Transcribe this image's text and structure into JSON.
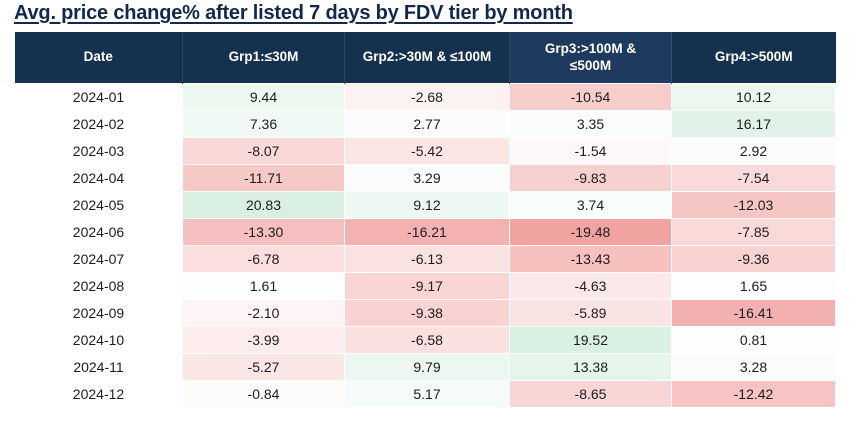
{
  "page": {
    "title": "Avg. price change% after listed 7 days by FDV tier by month"
  },
  "colors": {
    "title_text": "#12294b",
    "header_bg": "#16304f",
    "header_bg_grp3": "#1e3a5e",
    "header_text": "#ffffff",
    "body_text": "#1d1d1d",
    "positive_strong": "#d8efe1",
    "negative_strong": "#f0a3a1",
    "neutral": "#ffffff"
  },
  "chart_data": {
    "type": "heatmap",
    "title": "Avg. price change% after listed 7 days by FDV tier by month",
    "columns": [
      "Date",
      "Grp1:≤30M",
      "Grp2:>30M & ≤100M",
      "Grp3:>100M & ≤500M",
      "Grp4:>500M"
    ],
    "rows": [
      {
        "date": "2024-01",
        "values": [
          9.44,
          -2.68,
          -10.54,
          10.12
        ]
      },
      {
        "date": "2024-02",
        "values": [
          7.36,
          2.77,
          3.35,
          16.17
        ]
      },
      {
        "date": "2024-03",
        "values": [
          -8.07,
          -5.42,
          -1.54,
          2.92
        ]
      },
      {
        "date": "2024-04",
        "values": [
          -11.71,
          3.29,
          -9.83,
          -7.54
        ]
      },
      {
        "date": "2024-05",
        "values": [
          20.83,
          9.12,
          3.74,
          -12.03
        ]
      },
      {
        "date": "2024-06",
        "values": [
          -13.3,
          -16.21,
          -19.48,
          -7.85
        ]
      },
      {
        "date": "2024-07",
        "values": [
          -6.78,
          -6.13,
          -13.43,
          -9.36
        ]
      },
      {
        "date": "2024-08",
        "values": [
          1.61,
          -9.17,
          -4.63,
          1.65
        ]
      },
      {
        "date": "2024-09",
        "values": [
          -2.1,
          -9.38,
          -5.89,
          -16.41
        ]
      },
      {
        "date": "2024-10",
        "values": [
          -3.99,
          -6.58,
          19.52,
          0.81
        ]
      },
      {
        "date": "2024-11",
        "values": [
          -5.27,
          9.79,
          13.38,
          3.28
        ]
      },
      {
        "date": "2024-12",
        "values": [
          -0.84,
          5.17,
          -8.65,
          -12.42
        ]
      }
    ],
    "value_format": "2dp",
    "color_scale": {
      "min": -19.48,
      "max": 20.83,
      "negative_color": "#f0a3a1",
      "positive_color": "#d8efe1",
      "midpoint_color": "#ffffff"
    },
    "layout": {
      "legend": "none",
      "grid": "off",
      "header_alt_shade_column_index": 3
    }
  }
}
